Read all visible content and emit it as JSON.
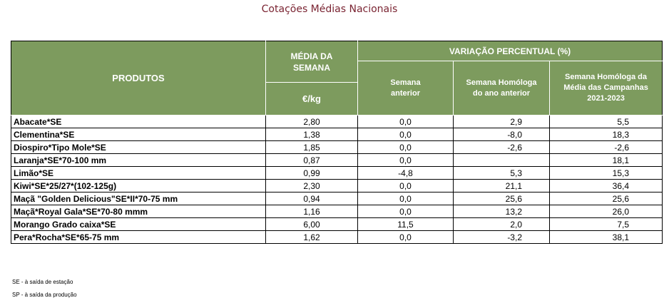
{
  "title": "Cotações Médias Nacionais",
  "header": {
    "produtos": "PRODUTOS",
    "media_line1": "MÉDIA DA",
    "media_line2": "SEMANA",
    "unit": "€/kg",
    "variacao": "VARIAÇÃO PERCENTUAL (%)",
    "sub1_line1": "Semana",
    "sub1_line2": "anterior",
    "sub2_line1": "Semana Homóloga",
    "sub2_line2": "do ano anterior",
    "sub3_line1": "Semana Homóloga da",
    "sub3_line2": "Média das Campanhas",
    "sub3_line3": "2021-2023"
  },
  "rows": [
    {
      "produto": "Abacate*SE",
      "media": "2,80",
      "anterior": "0,0",
      "homologa": "2,9",
      "campanhas": "5,5"
    },
    {
      "produto": "Clementina*SE",
      "media": "1,38",
      "anterior": "0,0",
      "homologa": "-8,0",
      "campanhas": "18,3"
    },
    {
      "produto": "Diospiro*Tipo Mole*SE",
      "media": "1,85",
      "anterior": "0,0",
      "homologa": "-2,6",
      "campanhas": "-2,6"
    },
    {
      "produto": "Laranja*SE*70-100 mm",
      "media": "0,87",
      "anterior": "0,0",
      "homologa": "",
      "campanhas": "18,1"
    },
    {
      "produto": "Limão*SE",
      "media": "0,99",
      "anterior": "-4,8",
      "homologa": "5,3",
      "campanhas": "15,3"
    },
    {
      "produto": "Kiwi*SE*25/27*(102-125g)",
      "media": "2,30",
      "anterior": "0,0",
      "homologa": "21,1",
      "campanhas": "36,4"
    },
    {
      "produto": "Maçã \"Golden Delicious\"SE*II*70-75 mm",
      "media": "0,94",
      "anterior": "0,0",
      "homologa": "25,6",
      "campanhas": "25,6"
    },
    {
      "produto": "Maçã*Royal Gala*SE*70-80 mmm",
      "media": "1,16",
      "anterior": "0,0",
      "homologa": "13,2",
      "campanhas": "26,0"
    },
    {
      "produto": "Morango Grado caixa*SE",
      "media": "6,00",
      "anterior": "11,5",
      "homologa": "2,0",
      "campanhas": "7,5"
    },
    {
      "produto": "Pera*Rocha*SE*65-75 mm",
      "media": "1,62",
      "anterior": "0,0",
      "homologa": "-3,2",
      "campanhas": "38,1"
    }
  ],
  "notes": {
    "se": "SE - à saída de estação",
    "sp": "SP - à saída da produção"
  },
  "colors": {
    "header_bg": "#7d9b5e",
    "title": "#7a2432"
  }
}
